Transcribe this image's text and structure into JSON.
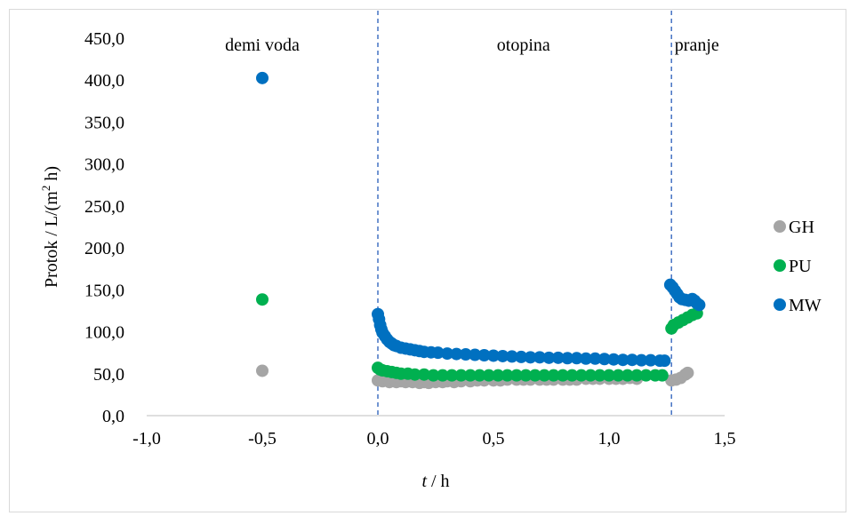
{
  "chart_data": {
    "type": "scatter",
    "xlabel_italic": "t",
    "xlabel_rest": " / h",
    "ylabel": "Protok / L/(m",
    "ylabel_sup": "2",
    "ylabel_end": " h)",
    "xlim": [
      -1.0,
      1.5
    ],
    "ylim": [
      0.0,
      450.0
    ],
    "x_ticks": [
      -1.0,
      -0.5,
      0.0,
      0.5,
      1.0,
      1.5
    ],
    "x_tick_labels": [
      "-1,0",
      "-0,5",
      "0,0",
      "0,5",
      "1,0",
      "1,5"
    ],
    "y_ticks": [
      0,
      50,
      100,
      150,
      200,
      250,
      300,
      350,
      400,
      450
    ],
    "y_tick_labels": [
      "0,0",
      "50,0",
      "100,0",
      "150,0",
      "200,0",
      "250,0",
      "300,0",
      "350,0",
      "400,0",
      "450,0"
    ],
    "grid": false,
    "legend_position": "right",
    "vlines": [
      {
        "x": 0.0,
        "color": "#4472c4"
      },
      {
        "x": 1.27,
        "color": "#4472c4"
      }
    ],
    "regions": [
      {
        "label": "demi voda",
        "x": -0.5
      },
      {
        "label": "otopina",
        "x": 0.63
      },
      {
        "label": "pranje",
        "x": 1.38
      }
    ],
    "series": [
      {
        "name": "GH",
        "color": "#a5a5a5",
        "points": [
          [
            -0.5,
            53.5
          ],
          [
            0.0,
            42
          ],
          [
            0.02,
            41
          ],
          [
            0.05,
            40
          ],
          [
            0.08,
            40
          ],
          [
            0.1,
            41
          ],
          [
            0.12,
            40
          ],
          [
            0.15,
            40
          ],
          [
            0.18,
            39
          ],
          [
            0.2,
            40
          ],
          [
            0.22,
            39
          ],
          [
            0.25,
            40
          ],
          [
            0.28,
            40
          ],
          [
            0.3,
            41
          ],
          [
            0.33,
            40
          ],
          [
            0.36,
            41
          ],
          [
            0.4,
            41
          ],
          [
            0.43,
            42
          ],
          [
            0.46,
            42
          ],
          [
            0.5,
            42
          ],
          [
            0.53,
            42
          ],
          [
            0.56,
            43
          ],
          [
            0.6,
            43
          ],
          [
            0.63,
            43
          ],
          [
            0.66,
            43
          ],
          [
            0.7,
            43
          ],
          [
            0.73,
            43
          ],
          [
            0.76,
            43
          ],
          [
            0.8,
            43
          ],
          [
            0.83,
            43
          ],
          [
            0.86,
            43
          ],
          [
            0.9,
            44
          ],
          [
            0.93,
            44
          ],
          [
            0.96,
            44
          ],
          [
            1.0,
            44
          ],
          [
            1.03,
            44
          ],
          [
            1.06,
            44
          ],
          [
            1.09,
            45
          ],
          [
            1.12,
            44
          ],
          [
            1.27,
            42
          ],
          [
            1.29,
            43
          ],
          [
            1.31,
            45
          ],
          [
            1.33,
            49
          ],
          [
            1.34,
            51
          ]
        ]
      },
      {
        "name": "PU",
        "color": "#00b050",
        "points": [
          [
            -0.5,
            138.5
          ],
          [
            0.0,
            57
          ],
          [
            0.01,
            55
          ],
          [
            0.02,
            54
          ],
          [
            0.04,
            53
          ],
          [
            0.06,
            52
          ],
          [
            0.08,
            51
          ],
          [
            0.1,
            50
          ],
          [
            0.13,
            50
          ],
          [
            0.16,
            49
          ],
          [
            0.2,
            49
          ],
          [
            0.24,
            48
          ],
          [
            0.28,
            48
          ],
          [
            0.32,
            48
          ],
          [
            0.36,
            48
          ],
          [
            0.4,
            48
          ],
          [
            0.44,
            48
          ],
          [
            0.48,
            48
          ],
          [
            0.52,
            48
          ],
          [
            0.56,
            48
          ],
          [
            0.6,
            48
          ],
          [
            0.64,
            48
          ],
          [
            0.68,
            48
          ],
          [
            0.72,
            48
          ],
          [
            0.76,
            48
          ],
          [
            0.8,
            48
          ],
          [
            0.84,
            48
          ],
          [
            0.88,
            48
          ],
          [
            0.92,
            48
          ],
          [
            0.96,
            48
          ],
          [
            1.0,
            48
          ],
          [
            1.04,
            48
          ],
          [
            1.08,
            48
          ],
          [
            1.12,
            48
          ],
          [
            1.16,
            48
          ],
          [
            1.2,
            48
          ],
          [
            1.23,
            48
          ],
          [
            1.27,
            104
          ],
          [
            1.28,
            108
          ],
          [
            1.3,
            111
          ],
          [
            1.32,
            114
          ],
          [
            1.34,
            117
          ],
          [
            1.36,
            120
          ],
          [
            1.38,
            122
          ]
        ]
      },
      {
        "name": "MW",
        "color": "#0070c0",
        "points": [
          [
            -0.5,
            402.5
          ],
          [
            0.0,
            121
          ],
          [
            0.005,
            115
          ],
          [
            0.01,
            108
          ],
          [
            0.015,
            103
          ],
          [
            0.02,
            99
          ],
          [
            0.03,
            95
          ],
          [
            0.04,
            91
          ],
          [
            0.05,
            88
          ],
          [
            0.06,
            86
          ],
          [
            0.07,
            84
          ],
          [
            0.08,
            83
          ],
          [
            0.1,
            81
          ],
          [
            0.12,
            80
          ],
          [
            0.14,
            79
          ],
          [
            0.16,
            78
          ],
          [
            0.18,
            77
          ],
          [
            0.2,
            76
          ],
          [
            0.23,
            75.5
          ],
          [
            0.26,
            75
          ],
          [
            0.3,
            74
          ],
          [
            0.34,
            73.5
          ],
          [
            0.38,
            73
          ],
          [
            0.42,
            72.5
          ],
          [
            0.46,
            72
          ],
          [
            0.5,
            71.5
          ],
          [
            0.54,
            71
          ],
          [
            0.58,
            70.5
          ],
          [
            0.62,
            70
          ],
          [
            0.66,
            69.5
          ],
          [
            0.7,
            69.5
          ],
          [
            0.74,
            69
          ],
          [
            0.78,
            69
          ],
          [
            0.82,
            68.5
          ],
          [
            0.86,
            68.5
          ],
          [
            0.9,
            68
          ],
          [
            0.94,
            68
          ],
          [
            0.98,
            67.5
          ],
          [
            1.02,
            67
          ],
          [
            1.06,
            66.5
          ],
          [
            1.1,
            66.5
          ],
          [
            1.14,
            66
          ],
          [
            1.18,
            66
          ],
          [
            1.22,
            65.5
          ],
          [
            1.24,
            65.5
          ],
          [
            1.265,
            156
          ],
          [
            1.275,
            153
          ],
          [
            1.285,
            149
          ],
          [
            1.295,
            145
          ],
          [
            1.305,
            141
          ],
          [
            1.315,
            139
          ],
          [
            1.33,
            138
          ],
          [
            1.345,
            137
          ],
          [
            1.36,
            139
          ],
          [
            1.37,
            137
          ],
          [
            1.38,
            134
          ],
          [
            1.39,
            132
          ]
        ]
      }
    ]
  }
}
